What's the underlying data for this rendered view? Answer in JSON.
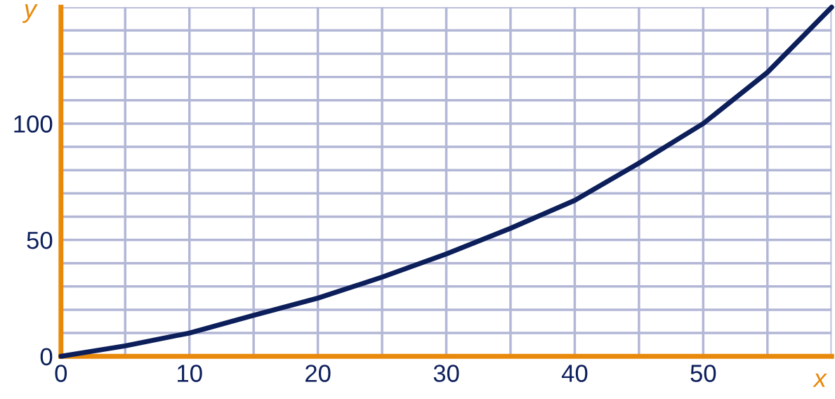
{
  "chart_data": {
    "type": "line",
    "xlabel": "x",
    "ylabel": "y",
    "x": [
      0,
      5,
      10,
      15,
      20,
      25,
      30,
      35,
      40,
      45,
      50,
      55,
      60
    ],
    "series": [
      {
        "color": "#0c1f5b",
        "values": [
          0,
          4.5,
          10,
          17.6,
          25,
          34,
          44,
          55,
          67,
          83,
          100,
          122,
          150
        ]
      }
    ],
    "xlim": [
      0,
      60
    ],
    "ylim": [
      0,
      150
    ],
    "xticks": [
      0,
      {
        "value": 5,
        "label": null
      },
      10,
      {
        "value": 15,
        "label": null
      },
      20,
      {
        "value": 25,
        "label": null
      },
      30,
      {
        "value": 35,
        "label": null
      },
      40,
      {
        "value": 45,
        "label": null
      },
      50,
      {
        "value": 55,
        "label": null
      },
      {
        "value": 60,
        "label": null
      }
    ],
    "yticks": [
      0,
      {
        "value": 10,
        "label": null
      },
      {
        "value": 20,
        "label": null
      },
      {
        "value": 30,
        "label": null
      },
      {
        "value": 40,
        "label": null
      },
      50,
      {
        "value": 60,
        "label": null
      },
      {
        "value": 70,
        "label": null
      },
      {
        "value": 80,
        "label": null
      },
      {
        "value": 90,
        "label": null
      },
      100,
      {
        "value": 110,
        "label": null
      },
      {
        "value": 120,
        "label": null
      },
      {
        "value": 130,
        "label": null
      },
      {
        "value": 140,
        "label": null
      },
      {
        "value": 150,
        "label": null
      }
    ],
    "grid": true,
    "marker": "none",
    "line_style": "solid"
  }
}
